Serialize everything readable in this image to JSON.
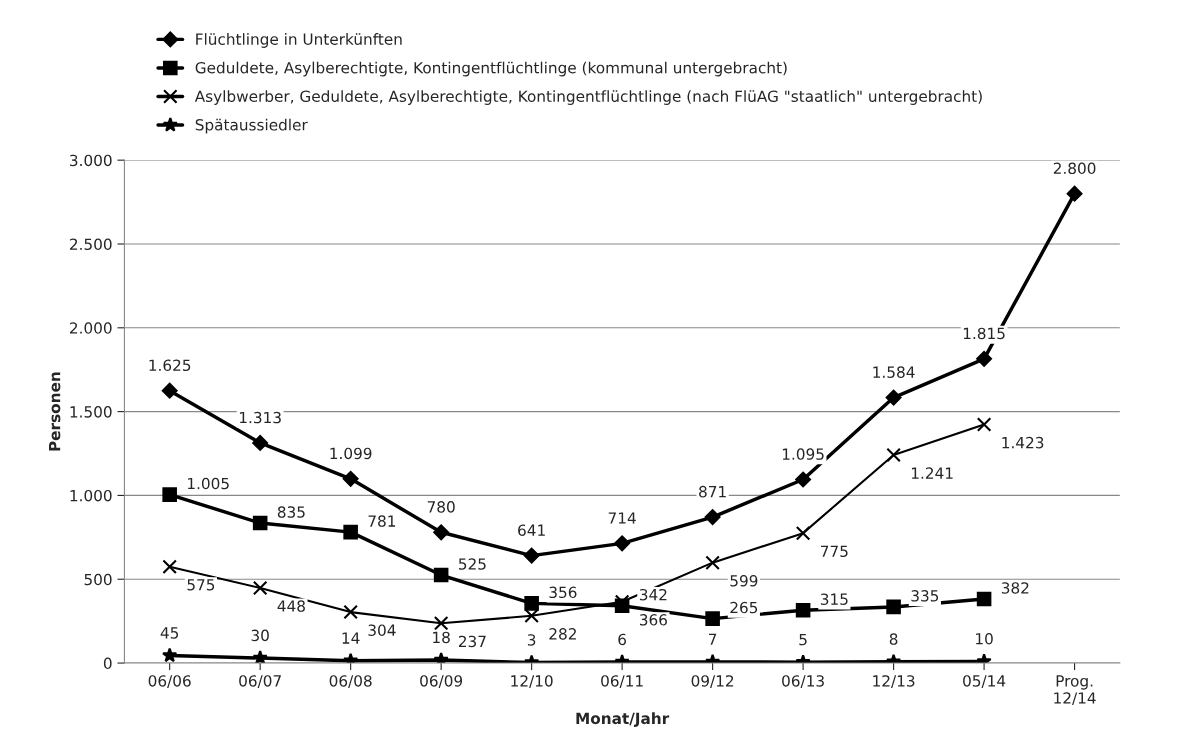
{
  "chart_data": {
    "type": "line",
    "xlabel": "Monat/Jahr",
    "ylabel": "Personen",
    "categories": [
      "06/06",
      "06/07",
      "06/08",
      "06/09",
      "12/10",
      "06/11",
      "09/12",
      "06/13",
      "12/13",
      "05/14",
      "Prog.\n12/14"
    ],
    "series": [
      {
        "name": "Flüchtlinge in Unterkünften",
        "color": "#000000",
        "marker": "diamond",
        "values": [
          1625,
          1313,
          1099,
          780,
          641,
          714,
          871,
          1095,
          1584,
          1815,
          2800
        ],
        "value_labels": [
          "1.625",
          "1.313",
          "1.099",
          "780",
          "641",
          "714",
          "871",
          "1.095",
          "1.584",
          "1.815",
          "2.800"
        ]
      },
      {
        "name": "Geduldete, Asylberechtigte, Kontingentflüchtlinge (kommunal untergebracht)",
        "color": "#000000",
        "marker": "square",
        "values": [
          1005,
          835,
          781,
          525,
          356,
          342,
          265,
          315,
          335,
          382,
          null
        ],
        "value_labels": [
          "1.005",
          "835",
          "781",
          "525",
          "356",
          "342",
          "265",
          "315",
          "335",
          "382",
          null
        ]
      },
      {
        "name": "Asylbwerber, Geduldete, Asylberechtigte, Kontingentflüchtlinge (nach FlüAG \"staatlich\" untergebracht)",
        "color": "#000000",
        "marker": "cross",
        "values": [
          575,
          448,
          304,
          237,
          282,
          366,
          599,
          775,
          1241,
          1423,
          null
        ],
        "value_labels": [
          "575",
          "448",
          "304",
          "237",
          "282",
          "366",
          "599",
          "775",
          "1.241",
          "1.423",
          null
        ]
      },
      {
        "name": "Spätaussiedler",
        "color": "#000000",
        "marker": "star",
        "values": [
          45,
          30,
          14,
          18,
          3,
          6,
          7,
          5,
          8,
          10,
          null
        ],
        "value_labels": [
          "45",
          "30",
          "14",
          "18",
          "3",
          "6",
          "7",
          "5",
          "8",
          "10",
          null
        ]
      }
    ],
    "ylim": [
      0,
      3000
    ],
    "yticks": [
      {
        "value": 0,
        "label": "0"
      },
      {
        "value": 500,
        "label": "500"
      },
      {
        "value": 1000,
        "label": "1.000"
      },
      {
        "value": 1500,
        "label": "1.500"
      },
      {
        "value": 2000,
        "label": "2.000"
      },
      {
        "value": 2500,
        "label": "2.500"
      },
      {
        "value": 3000,
        "label": "3.000"
      }
    ],
    "grid": "y",
    "legend": "top"
  }
}
